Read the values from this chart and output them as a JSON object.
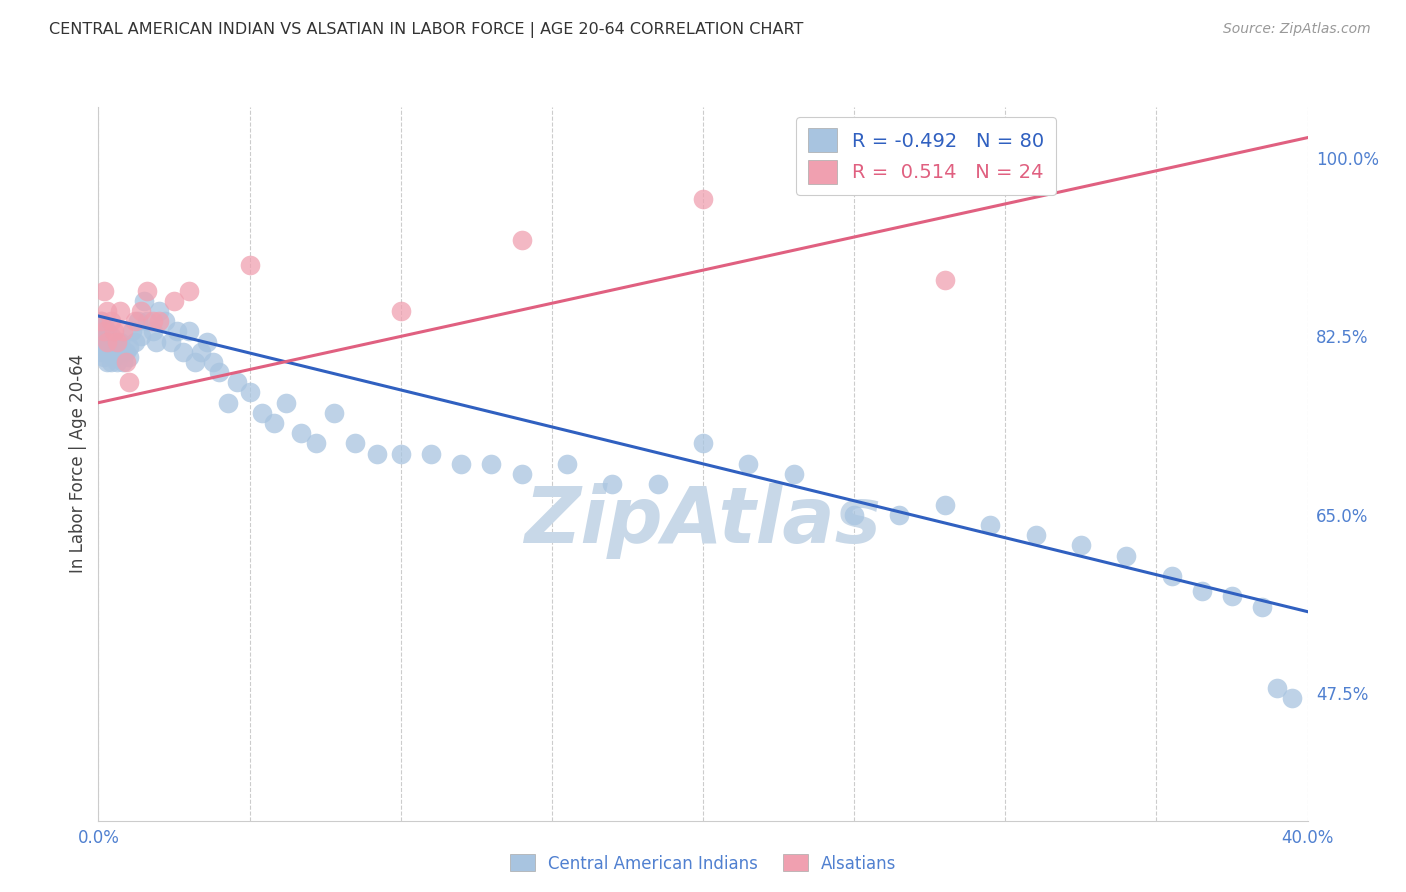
{
  "title": "CENTRAL AMERICAN INDIAN VS ALSATIAN IN LABOR FORCE | AGE 20-64 CORRELATION CHART",
  "source": "Source: ZipAtlas.com",
  "ylabel": "In Labor Force | Age 20-64",
  "xlim": [
    0.0,
    0.4
  ],
  "ylim": [
    0.35,
    1.05
  ],
  "xticks": [
    0.0,
    0.05,
    0.1,
    0.15,
    0.2,
    0.25,
    0.3,
    0.35,
    0.4
  ],
  "xtick_labels": [
    "0.0%",
    "",
    "",
    "",
    "",
    "",
    "",
    "",
    "40.0%"
  ],
  "ytick_positions": [
    0.475,
    0.65,
    0.825,
    1.0
  ],
  "ytick_labels": [
    "47.5%",
    "65.0%",
    "82.5%",
    "100.0%"
  ],
  "blue_R": -0.492,
  "blue_N": 80,
  "pink_R": 0.514,
  "pink_N": 24,
  "blue_color": "#a8c4e0",
  "pink_color": "#f0a0b0",
  "blue_line_color": "#3060c0",
  "pink_line_color": "#e06080",
  "grid_color": "#cccccc",
  "title_color": "#333333",
  "axis_label_color": "#5080d0",
  "watermark_color": "#c8d8e8",
  "blue_trend_x": [
    0.0,
    0.4
  ],
  "blue_trend_y": [
    0.845,
    0.555
  ],
  "pink_trend_x": [
    0.0,
    0.4
  ],
  "pink_trend_y": [
    0.76,
    1.02
  ],
  "blue_x": [
    0.001,
    0.001,
    0.001,
    0.001,
    0.002,
    0.002,
    0.002,
    0.002,
    0.003,
    0.003,
    0.003,
    0.003,
    0.004,
    0.004,
    0.004,
    0.005,
    0.005,
    0.006,
    0.006,
    0.007,
    0.007,
    0.008,
    0.008,
    0.009,
    0.01,
    0.01,
    0.011,
    0.012,
    0.013,
    0.014,
    0.015,
    0.016,
    0.018,
    0.019,
    0.02,
    0.022,
    0.024,
    0.026,
    0.028,
    0.03,
    0.032,
    0.034,
    0.036,
    0.038,
    0.04,
    0.043,
    0.046,
    0.05,
    0.054,
    0.058,
    0.062,
    0.067,
    0.072,
    0.078,
    0.085,
    0.092,
    0.1,
    0.11,
    0.12,
    0.13,
    0.14,
    0.155,
    0.17,
    0.185,
    0.2,
    0.215,
    0.23,
    0.25,
    0.265,
    0.28,
    0.295,
    0.31,
    0.325,
    0.34,
    0.355,
    0.365,
    0.375,
    0.385,
    0.39,
    0.395
  ],
  "blue_y": [
    0.84,
    0.83,
    0.82,
    0.81,
    0.835,
    0.825,
    0.815,
    0.805,
    0.83,
    0.82,
    0.81,
    0.8,
    0.825,
    0.815,
    0.8,
    0.82,
    0.805,
    0.815,
    0.8,
    0.82,
    0.815,
    0.81,
    0.8,
    0.81,
    0.815,
    0.805,
    0.83,
    0.82,
    0.84,
    0.825,
    0.86,
    0.84,
    0.83,
    0.82,
    0.85,
    0.84,
    0.82,
    0.83,
    0.81,
    0.83,
    0.8,
    0.81,
    0.82,
    0.8,
    0.79,
    0.76,
    0.78,
    0.77,
    0.75,
    0.74,
    0.76,
    0.73,
    0.72,
    0.75,
    0.72,
    0.71,
    0.71,
    0.71,
    0.7,
    0.7,
    0.69,
    0.7,
    0.68,
    0.68,
    0.72,
    0.7,
    0.69,
    0.65,
    0.65,
    0.66,
    0.64,
    0.63,
    0.62,
    0.61,
    0.59,
    0.575,
    0.57,
    0.56,
    0.48,
    0.47
  ],
  "pink_x": [
    0.001,
    0.002,
    0.002,
    0.003,
    0.003,
    0.004,
    0.005,
    0.006,
    0.007,
    0.008,
    0.009,
    0.01,
    0.012,
    0.014,
    0.016,
    0.018,
    0.02,
    0.025,
    0.03,
    0.05,
    0.1,
    0.14,
    0.2,
    0.28
  ],
  "pink_y": [
    0.84,
    0.87,
    0.83,
    0.85,
    0.82,
    0.84,
    0.83,
    0.82,
    0.85,
    0.83,
    0.8,
    0.78,
    0.84,
    0.85,
    0.87,
    0.84,
    0.84,
    0.86,
    0.87,
    0.895,
    0.85,
    0.92,
    0.96,
    0.88
  ]
}
